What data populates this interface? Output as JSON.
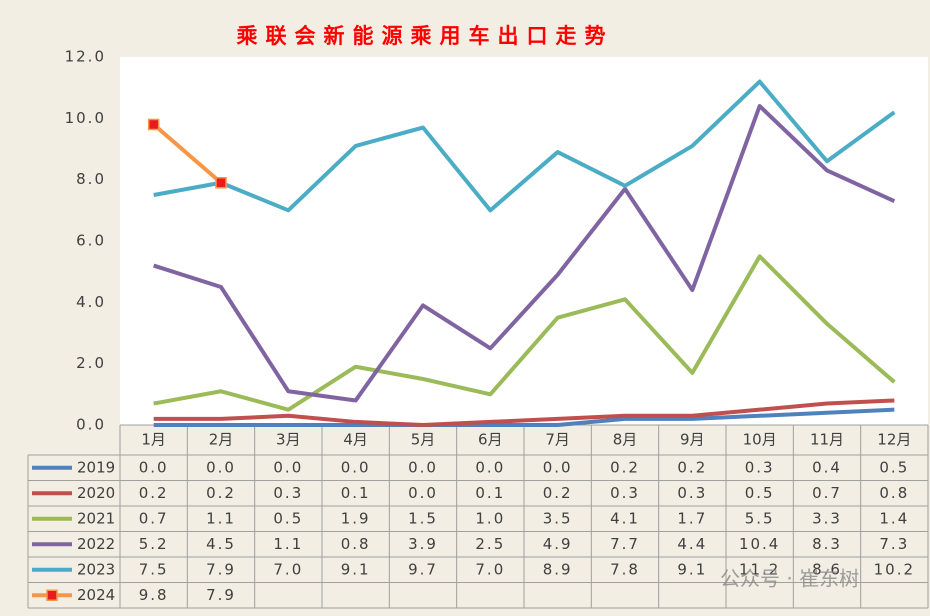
{
  "chart_data": {
    "type": "line",
    "title": "乘联会新能源乘用车出口走势",
    "categories": [
      "1月",
      "2月",
      "3月",
      "4月",
      "5月",
      "6月",
      "7月",
      "8月",
      "9月",
      "10月",
      "11月",
      "12月"
    ],
    "ylim": [
      0,
      12
    ],
    "yticks": [
      {
        "value": 0,
        "label": "0.0"
      },
      {
        "value": 2,
        "label": "2.0"
      },
      {
        "value": 4,
        "label": "4.0"
      },
      {
        "value": 6,
        "label": "6.0"
      },
      {
        "value": 8,
        "label": "8.0"
      },
      {
        "value": 10,
        "label": "10.0"
      },
      {
        "value": 12,
        "label": "12.0"
      }
    ],
    "grid": false,
    "series": [
      {
        "name": "2019",
        "color": "#4f81bd",
        "values": [
          0,
          0,
          0,
          0,
          0,
          0,
          0,
          0.2,
          0.2,
          0.3,
          0.4,
          0.5
        ],
        "value_labels": [
          "0.0",
          "0.0",
          "0.0",
          "0.0",
          "0.0",
          "0.0",
          "0.0",
          "0.2",
          "0.2",
          "0.3",
          "0.4",
          "0.5"
        ]
      },
      {
        "name": "2020",
        "color": "#c0504d",
        "values": [
          0.2,
          0.2,
          0.3,
          0.1,
          0,
          0.1,
          0.2,
          0.3,
          0.3,
          0.5,
          0.7,
          0.8
        ],
        "value_labels": [
          "0.2",
          "0.2",
          "0.3",
          "0.1",
          "0.0",
          "0.1",
          "0.2",
          "0.3",
          "0.3",
          "0.5",
          "0.7",
          "0.8"
        ]
      },
      {
        "name": "2021",
        "color": "#9bbb59",
        "values": [
          0.7,
          1.1,
          0.5,
          1.9,
          1.5,
          1,
          3.5,
          4.1,
          1.7,
          5.5,
          3.3,
          1.4
        ],
        "value_labels": [
          "0.7",
          "1.1",
          "0.5",
          "1.9",
          "1.5",
          "1.0",
          "3.5",
          "4.1",
          "1.7",
          "5.5",
          "3.3",
          "1.4"
        ]
      },
      {
        "name": "2022",
        "color": "#8064a2",
        "values": [
          5.2,
          4.5,
          1.1,
          0.8,
          3.9,
          2.5,
          4.9,
          7.7,
          4.4,
          10.4,
          8.3,
          7.3
        ],
        "value_labels": [
          "5.2",
          "4.5",
          "1.1",
          "0.8",
          "3.9",
          "2.5",
          "4.9",
          "7.7",
          "4.4",
          "10.4",
          "8.3",
          "7.3"
        ]
      },
      {
        "name": "2023",
        "color": "#4bacc6",
        "values": [
          7.5,
          7.9,
          7,
          9.1,
          9.7,
          7,
          8.9,
          7.8,
          9.1,
          11.2,
          8.6,
          10.2
        ],
        "value_labels": [
          "7.5",
          "7.9",
          "7.0",
          "9.1",
          "9.7",
          "7.0",
          "8.9",
          "7.8",
          "9.1",
          "11.2",
          "8.6",
          "10.2"
        ]
      },
      {
        "name": "2024",
        "color": "#f79646",
        "marker_color": "#e81c1c",
        "values": [
          9.8,
          7.9,
          null,
          null,
          null,
          null,
          null,
          null,
          null,
          null,
          null,
          null
        ],
        "value_labels": [
          "9.8",
          "7.9",
          null,
          null,
          null,
          null,
          null,
          null,
          null,
          null,
          null,
          null
        ]
      }
    ],
    "watermark": "公众号 · 崔东树"
  }
}
